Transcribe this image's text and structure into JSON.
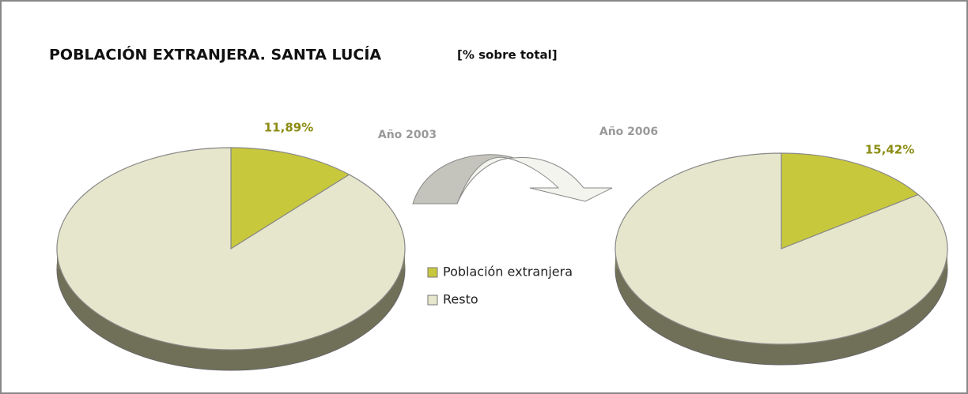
{
  "title": "POBLACIÓN EXTRANJERA. SANTA LUCÍA",
  "subtitle": "[% sobre total]",
  "chart_data": [
    {
      "type": "pie",
      "title": "Año 2003",
      "categories": [
        "Población extranjera",
        "Resto"
      ],
      "values": [
        11.89,
        88.11
      ],
      "value_labels": [
        "11,89%",
        null
      ],
      "colors": [
        "#c8c83c",
        "#e6e6cc"
      ],
      "legend": "center"
    },
    {
      "type": "pie",
      "title": "Año 2006",
      "categories": [
        "Población extranjera",
        "Resto"
      ],
      "values": [
        15.42,
        84.58
      ],
      "value_labels": [
        "15,42%",
        null
      ],
      "colors": [
        "#c8c83c",
        "#e6e6cc"
      ]
    }
  ]
}
